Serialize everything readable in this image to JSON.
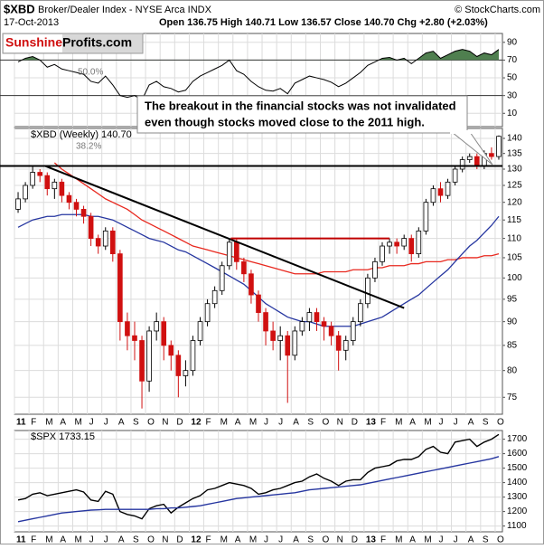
{
  "header": {
    "symbol": "$XBD",
    "name": "Broker/Dealer Index - NYSE Arca INDX",
    "source": "© StockCharts.com",
    "date": "17-Oct-2013",
    "quote": "Open 136.75  High 140.71  Low 136.57  Close 140.70  Chg +2.80 (+2.03%)"
  },
  "logo": {
    "part1": "Sunshine",
    "part2": "Profits.com"
  },
  "chart_data": [
    {
      "type": "line",
      "annotation": "50.0%",
      "ylim": [
        -5,
        100
      ],
      "yticks": [
        10,
        30,
        50,
        70,
        90
      ],
      "levels": [
        70,
        30
      ],
      "grid": true,
      "fill_color": "#4f7f4f",
      "series": [
        {
          "color": "#000000",
          "values": [
            68,
            72,
            74,
            70,
            62,
            65,
            60,
            58,
            56,
            54,
            46,
            44,
            52,
            42,
            30,
            28,
            30,
            25,
            42,
            46,
            40,
            38,
            34,
            36,
            46,
            52,
            56,
            60,
            64,
            70,
            58,
            54,
            46,
            40,
            36,
            35,
            38,
            32,
            44,
            48,
            52,
            50,
            48,
            45,
            40,
            44,
            50,
            56,
            64,
            68,
            72,
            73,
            70,
            72,
            66,
            72,
            78,
            80,
            72,
            76,
            80,
            82,
            80,
            74,
            78,
            76,
            82
          ]
        }
      ]
    },
    {
      "type": "candlestick",
      "title": "$XBD (Weekly) 140.70",
      "annotation": "38.2%",
      "callout": [
        "The breakout in the financial stocks was not invalidated",
        "even though stocks moved close to the 2011 high."
      ],
      "categories": [
        "11",
        null,
        "F",
        null,
        "M",
        null,
        "A",
        null,
        "M",
        null,
        "J",
        null,
        "J",
        null,
        "A",
        null,
        "S",
        null,
        "O",
        null,
        "N",
        null,
        "D",
        null,
        "12",
        null,
        "F",
        null,
        "M",
        null,
        "A",
        null,
        "M",
        null,
        "J",
        null,
        "J",
        null,
        "A",
        null,
        "S",
        null,
        "O",
        null,
        "N",
        null,
        "D",
        null,
        "13",
        null,
        "F",
        null,
        "M",
        null,
        "A",
        null,
        "M",
        null,
        "J",
        null,
        "J",
        null,
        "A",
        null,
        "S",
        null,
        "O"
      ],
      "open": [
        118,
        121,
        125,
        129,
        128,
        124,
        126,
        122,
        120,
        118,
        116,
        110,
        108,
        112,
        106,
        90,
        87,
        86,
        78,
        88,
        90,
        85,
        83,
        79,
        80,
        86,
        90,
        94,
        97,
        103,
        109,
        104,
        101,
        96,
        92,
        88,
        86,
        87,
        83,
        88,
        90,
        92,
        90,
        89,
        87,
        84,
        86,
        90,
        94,
        100,
        104,
        108,
        109,
        108,
        110,
        106,
        112,
        120,
        124,
        122,
        126,
        130,
        133,
        134,
        131,
        135,
        134
      ],
      "high": [
        123,
        126,
        131,
        130,
        129,
        127,
        127,
        123,
        121,
        119,
        117,
        111,
        113,
        113,
        107,
        92,
        90,
        87,
        89,
        92,
        91,
        86,
        84,
        82,
        87,
        91,
        95,
        98,
        104,
        110,
        110,
        105,
        102,
        97,
        93,
        90,
        89,
        88,
        89,
        91,
        93,
        93,
        91,
        90,
        88,
        87,
        91,
        95,
        101,
        105,
        109,
        110,
        110,
        111,
        111,
        113,
        121,
        125,
        126,
        127,
        131,
        134,
        135,
        135,
        136,
        137,
        141
      ],
      "low": [
        117,
        120,
        124,
        126,
        122,
        121,
        120,
        118,
        116,
        114,
        108,
        106,
        107,
        104,
        86,
        84,
        82,
        73,
        76,
        86,
        82,
        80,
        75,
        77,
        79,
        85,
        89,
        93,
        96,
        102,
        102,
        99,
        94,
        90,
        85,
        84,
        82,
        74,
        82,
        87,
        88,
        88,
        86,
        85,
        80,
        82,
        85,
        89,
        93,
        99,
        103,
        106,
        106,
        107,
        104,
        105,
        111,
        119,
        120,
        121,
        125,
        129,
        132,
        130,
        130,
        133,
        133
      ],
      "close": [
        121,
        125,
        129,
        128,
        124,
        126,
        122,
        120,
        118,
        116,
        110,
        108,
        112,
        106,
        90,
        87,
        86,
        78,
        88,
        90,
        85,
        83,
        79,
        80,
        86,
        90,
        94,
        97,
        103,
        109,
        104,
        101,
        96,
        92,
        88,
        86,
        87,
        83,
        88,
        90,
        92,
        90,
        89,
        87,
        84,
        86,
        90,
        94,
        100,
        104,
        108,
        109,
        108,
        110,
        106,
        112,
        120,
        124,
        122,
        126,
        130,
        133,
        134,
        131,
        135,
        134,
        140.7
      ],
      "up_color": "#000000",
      "down_color": "#d01010",
      "series": [
        {
          "color": "#e8281e",
          "values": [
            null,
            null,
            null,
            null,
            null,
            132,
            130,
            128.5,
            127,
            125.5,
            124,
            122.5,
            121,
            120,
            119,
            118,
            116.5,
            115,
            114,
            113,
            112,
            111,
            110,
            109,
            108,
            107.5,
            107,
            106.5,
            106,
            105.5,
            105,
            104.5,
            104,
            103.5,
            103,
            102.5,
            102,
            101.5,
            101,
            101,
            101,
            101,
            101.5,
            101.5,
            101.5,
            101.5,
            102,
            102,
            102,
            102.5,
            102.5,
            103,
            103,
            103,
            103.5,
            103.5,
            104,
            104,
            104,
            104.5,
            104.5,
            105,
            105,
            105,
            105.5,
            105.5,
            106
          ]
        },
        {
          "color": "#2636a0",
          "values": [
            113,
            114,
            115,
            115.5,
            116,
            116,
            116.5,
            116.5,
            116.5,
            116.5,
            116,
            116,
            115.5,
            115,
            114,
            113,
            112,
            111,
            110,
            109.5,
            109,
            108,
            107,
            106.5,
            105.5,
            104.5,
            103.5,
            102.5,
            101.5,
            100.5,
            99.5,
            98.5,
            97,
            95.5,
            94,
            93,
            92,
            91,
            90.5,
            90,
            90,
            89.5,
            89,
            89,
            89,
            89,
            89,
            89.5,
            90,
            90.5,
            91,
            92,
            93,
            94,
            95,
            96,
            97.5,
            99,
            100.5,
            102,
            104,
            106,
            108,
            109.5,
            111.5,
            113.5,
            116
          ]
        }
      ],
      "trend_lines": [
        {
          "color": "#000000",
          "x": [
            -0.5,
            66.5
          ],
          "y": [
            131,
            131
          ]
        },
        {
          "color": "#000000",
          "x": [
            3.7,
            53
          ],
          "y": [
            131,
            93
          ]
        },
        {
          "color": "#c00000",
          "x": [
            29.2,
            51
          ],
          "y": [
            110,
            110
          ]
        }
      ],
      "log_scale": true,
      "ylim": [
        72,
        143.4
      ],
      "yticks": [
        75,
        80,
        85,
        90,
        95,
        100,
        105,
        110,
        115,
        120,
        125,
        130,
        135,
        140
      ],
      "grid": true
    },
    {
      "type": "line",
      "title": "$SPX 1733.15",
      "categories": [
        "11",
        null,
        "F",
        null,
        "M",
        null,
        "A",
        null,
        "M",
        null,
        "J",
        null,
        "J",
        null,
        "A",
        null,
        "S",
        null,
        "O",
        null,
        "N",
        null,
        "D",
        null,
        "12",
        null,
        "F",
        null,
        "M",
        null,
        "A",
        null,
        "M",
        null,
        "J",
        null,
        "J",
        null,
        "A",
        null,
        "S",
        null,
        "O",
        null,
        "N",
        null,
        "D",
        null,
        "13",
        null,
        "F",
        null,
        "M",
        null,
        "A",
        null,
        "M",
        null,
        "J",
        null,
        "J",
        null,
        "A",
        null,
        "S",
        null,
        "O"
      ],
      "series": [
        {
          "color": "#000000",
          "values": [
            1280,
            1290,
            1320,
            1330,
            1310,
            1320,
            1330,
            1340,
            1350,
            1335,
            1280,
            1270,
            1340,
            1320,
            1200,
            1180,
            1170,
            1150,
            1220,
            1240,
            1250,
            1190,
            1230,
            1260,
            1290,
            1310,
            1350,
            1360,
            1380,
            1400,
            1390,
            1380,
            1360,
            1320,
            1330,
            1350,
            1360,
            1380,
            1400,
            1410,
            1440,
            1460,
            1430,
            1410,
            1380,
            1410,
            1420,
            1420,
            1470,
            1500,
            1510,
            1520,
            1550,
            1560,
            1560,
            1580,
            1630,
            1650,
            1610,
            1600,
            1680,
            1690,
            1700,
            1650,
            1680,
            1700,
            1733.15
          ]
        },
        {
          "color": "#2636a0",
          "values": [
            1130,
            1140,
            1150,
            1160,
            1170,
            1180,
            1190,
            1195,
            1200,
            1205,
            1210,
            1212,
            1215,
            1215,
            1215,
            1215,
            1215,
            1215,
            1215,
            1220,
            1220,
            1225,
            1225,
            1230,
            1235,
            1240,
            1250,
            1260,
            1270,
            1280,
            1290,
            1295,
            1300,
            1305,
            1310,
            1315,
            1320,
            1325,
            1330,
            1340,
            1350,
            1355,
            1360,
            1365,
            1370,
            1375,
            1380,
            1385,
            1395,
            1405,
            1415,
            1425,
            1435,
            1445,
            1455,
            1465,
            1475,
            1485,
            1495,
            1505,
            1515,
            1525,
            1535,
            1545,
            1555,
            1565,
            1580
          ]
        }
      ],
      "ylim": [
        1060,
        1760
      ],
      "yticks": [
        1100,
        1200,
        1300,
        1400,
        1500,
        1600,
        1700
      ],
      "grid": true
    }
  ]
}
